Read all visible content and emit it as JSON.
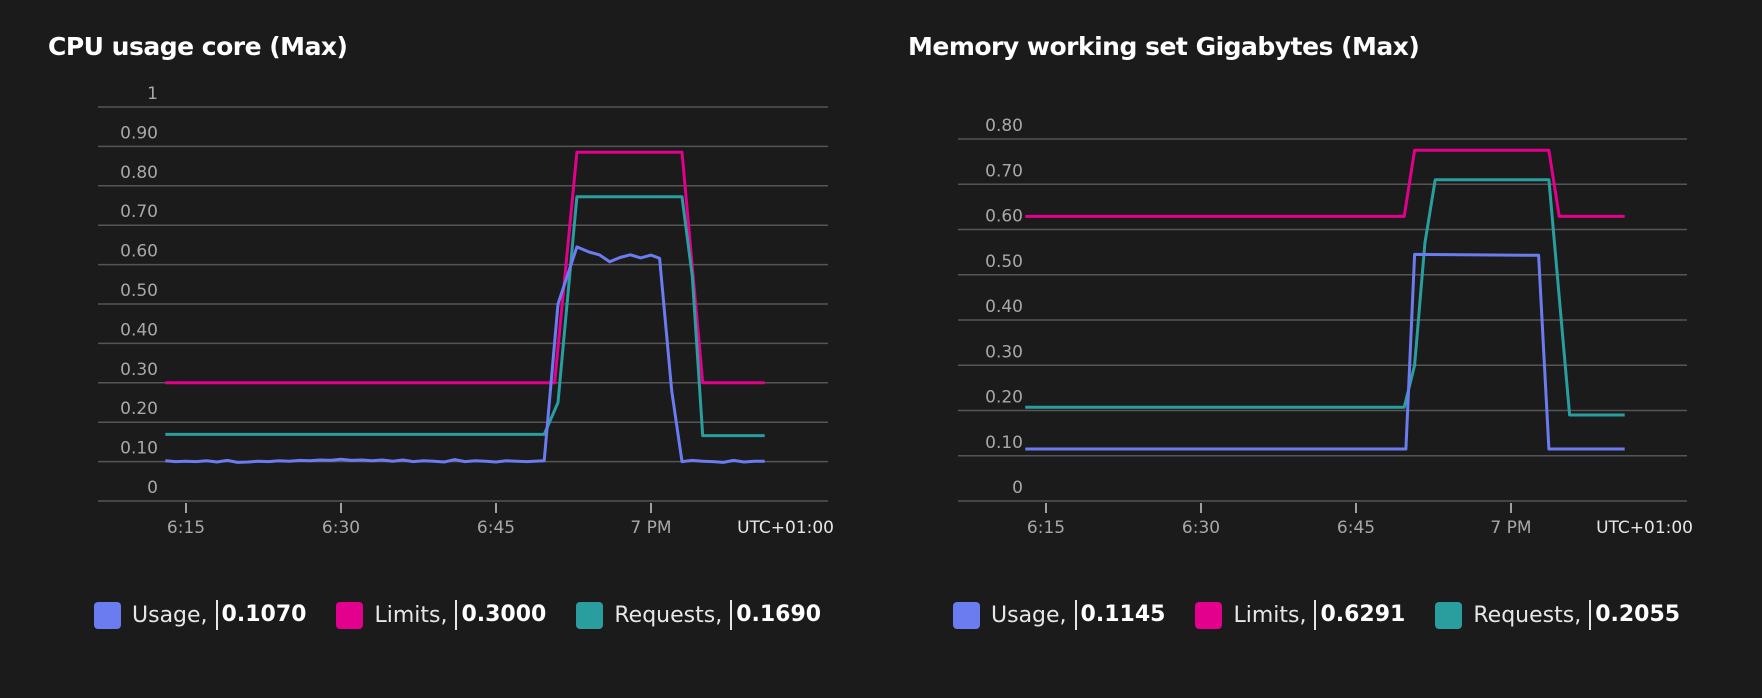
{
  "colors": {
    "background": "#1b1b1b",
    "grid": "#555555",
    "tick_text": "#a8a8a8",
    "usage": "#6b7cf0",
    "limits": "#e3008c",
    "requests": "#2a9d9f"
  },
  "chart_data": [
    {
      "type": "line",
      "title": "CPU usage core (Max)",
      "timezone_label": "UTC+01:00",
      "ylim": [
        0,
        1
      ],
      "yticks": [
        {
          "v": 0,
          "label": "0"
        },
        {
          "v": 0.1,
          "label": "0.10"
        },
        {
          "v": 0.2,
          "label": "0.20"
        },
        {
          "v": 0.3,
          "label": "0.30"
        },
        {
          "v": 0.4,
          "label": "0.40"
        },
        {
          "v": 0.5,
          "label": "0.50"
        },
        {
          "v": 0.6,
          "label": "0.60"
        },
        {
          "v": 0.7,
          "label": "0.70"
        },
        {
          "v": 0.8,
          "label": "0.80"
        },
        {
          "v": 0.9,
          "label": "0.90"
        },
        {
          "v": 1,
          "label": "1"
        }
      ],
      "xlim": [
        "18:08",
        "19:19"
      ],
      "xticks": [
        {
          "t": "18:15",
          "label": "6:15"
        },
        {
          "t": "18:30",
          "label": "6:30"
        },
        {
          "t": "18:45",
          "label": "6:45"
        },
        {
          "t": "19:00",
          "label": "7 PM"
        }
      ],
      "grid": true,
      "legend_placement": "bottom",
      "series": [
        {
          "name": "Usage",
          "key": "usage",
          "legend_value": "0.1070",
          "points": [
            [
              "18:13",
              0.102
            ],
            [
              "18:14",
              0.1
            ],
            [
              "18:15",
              0.101
            ],
            [
              "18:16",
              0.1
            ],
            [
              "18:17",
              0.102
            ],
            [
              "18:18",
              0.099
            ],
            [
              "18:19",
              0.103
            ],
            [
              "18:20",
              0.098
            ],
            [
              "18:21",
              0.099
            ],
            [
              "18:22",
              0.101
            ],
            [
              "18:23",
              0.1
            ],
            [
              "18:24",
              0.102
            ],
            [
              "18:25",
              0.101
            ],
            [
              "18:26",
              0.103
            ],
            [
              "18:27",
              0.102
            ],
            [
              "18:28",
              0.104
            ],
            [
              "18:29",
              0.103
            ],
            [
              "18:30",
              0.106
            ],
            [
              "18:31",
              0.103
            ],
            [
              "18:32",
              0.104
            ],
            [
              "18:33",
              0.102
            ],
            [
              "18:34",
              0.104
            ],
            [
              "18:35",
              0.101
            ],
            [
              "18:36",
              0.104
            ],
            [
              "18:37",
              0.1
            ],
            [
              "18:38",
              0.102
            ],
            [
              "18:39",
              0.101
            ],
            [
              "18:40",
              0.099
            ],
            [
              "18:41",
              0.105
            ],
            [
              "18:42",
              0.1
            ],
            [
              "18:43",
              0.102
            ],
            [
              "18:44",
              0.101
            ],
            [
              "18:45",
              0.099
            ],
            [
              "18:46",
              0.102
            ],
            [
              "18:47",
              0.101
            ],
            [
              "18:48",
              0.1
            ],
            [
              "18:49:40",
              0.102
            ],
            [
              "18:51",
              0.5
            ],
            [
              "18:52:50",
              0.645
            ],
            [
              "18:54",
              0.632
            ],
            [
              "18:55",
              0.625
            ],
            [
              "18:56",
              0.607
            ],
            [
              "18:57",
              0.618
            ],
            [
              "18:58",
              0.625
            ],
            [
              "18:59",
              0.617
            ],
            [
              "19:00",
              0.624
            ],
            [
              "19:00:50",
              0.616
            ],
            [
              "19:02",
              0.28
            ],
            [
              "19:03",
              0.1
            ],
            [
              "19:04",
              0.103
            ],
            [
              "19:05",
              0.101
            ],
            [
              "19:06",
              0.1
            ],
            [
              "19:07",
              0.098
            ],
            [
              "19:08",
              0.103
            ],
            [
              "19:09",
              0.099
            ],
            [
              "19:10",
              0.101
            ],
            [
              "19:11",
              0.101
            ]
          ]
        },
        {
          "name": "Limits",
          "key": "limits",
          "legend_value": "0.3000",
          "points": [
            [
              "18:13",
              0.3
            ],
            [
              "18:50:40",
              0.3
            ],
            [
              "18:52:50",
              0.885
            ],
            [
              "19:03",
              0.885
            ],
            [
              "19:05",
              0.3
            ],
            [
              "19:11",
              0.3
            ]
          ]
        },
        {
          "name": "Requests",
          "key": "requests",
          "legend_value": "0.1690",
          "points": [
            [
              "18:13",
              0.169
            ],
            [
              "18:49:40",
              0.169
            ],
            [
              "18:51",
              0.25
            ],
            [
              "18:52:50",
              0.772
            ],
            [
              "19:03",
              0.772
            ],
            [
              "19:04",
              0.57
            ],
            [
              "19:05",
              0.166
            ],
            [
              "19:11",
              0.166
            ]
          ]
        }
      ]
    },
    {
      "type": "line",
      "title": "Memory working set Gigabytes (Max)",
      "timezone_label": "UTC+01:00",
      "ylim": [
        0,
        0.8
      ],
      "yticks": [
        {
          "v": 0,
          "label": "0"
        },
        {
          "v": 0.1,
          "label": "0.10"
        },
        {
          "v": 0.2,
          "label": "0.20"
        },
        {
          "v": 0.3,
          "label": "0.30"
        },
        {
          "v": 0.4,
          "label": "0.40"
        },
        {
          "v": 0.5,
          "label": "0.50"
        },
        {
          "v": 0.6,
          "label": "0.60"
        },
        {
          "v": 0.7,
          "label": "0.70"
        },
        {
          "v": 0.8,
          "label": "0.80"
        }
      ],
      "xlim": [
        "18:07",
        "19:18"
      ],
      "xticks": [
        {
          "t": "18:15",
          "label": "6:15"
        },
        {
          "t": "18:30",
          "label": "6:30"
        },
        {
          "t": "18:45",
          "label": "6:45"
        },
        {
          "t": "19:00",
          "label": "7 PM"
        }
      ],
      "grid": true,
      "legend_placement": "bottom",
      "series": [
        {
          "name": "Usage",
          "key": "usage",
          "legend_value": "0.1145",
          "points": [
            [
              "18:13",
              0.115
            ],
            [
              "18:49:50",
              0.115
            ],
            [
              "18:50:40",
              0.545
            ],
            [
              "19:02:40",
              0.543
            ],
            [
              "19:03:40",
              0.115
            ],
            [
              "19:11",
              0.115
            ]
          ]
        },
        {
          "name": "Limits",
          "key": "limits",
          "legend_value": "0.6291",
          "points": [
            [
              "18:13",
              0.629
            ],
            [
              "18:49:40",
              0.629
            ],
            [
              "18:50:40",
              0.775
            ],
            [
              "19:03:40",
              0.775
            ],
            [
              "19:04:40",
              0.629
            ],
            [
              "19:11",
              0.629
            ]
          ]
        },
        {
          "name": "Requests",
          "key": "requests",
          "legend_value": "0.2055",
          "points": [
            [
              "18:13",
              0.207
            ],
            [
              "18:49:40",
              0.207
            ],
            [
              "18:50:40",
              0.3
            ],
            [
              "18:51:40",
              0.57
            ],
            [
              "18:52:40",
              0.71
            ],
            [
              "19:03:40",
              0.71
            ],
            [
              "19:05:40",
              0.19
            ],
            [
              "19:11",
              0.19
            ]
          ]
        }
      ]
    }
  ]
}
